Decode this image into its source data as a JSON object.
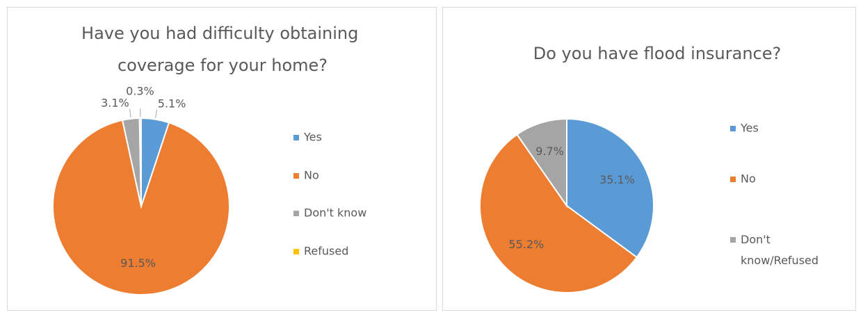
{
  "chart_data": [
    {
      "type": "pie",
      "title": "Have you had difficulty obtaining coverage for your home?",
      "categories": [
        "Yes",
        "No",
        "Don't know",
        "Refused"
      ],
      "values": [
        5.1,
        91.5,
        3.1,
        0.3
      ],
      "value_labels": [
        "5.1%",
        "91.5%",
        "3.1%",
        "0.3%"
      ],
      "colors": [
        "#5b9bd5",
        "#ed7d31",
        "#a5a5a5",
        "#ffc000"
      ],
      "legend": "right"
    },
    {
      "type": "pie",
      "title": "Do you have flood insurance?",
      "categories": [
        "Yes",
        "No",
        "Don't know/Refused"
      ],
      "values": [
        35.1,
        55.2,
        9.7
      ],
      "value_labels": [
        "35.1%",
        "55.2%",
        "9.7%"
      ],
      "colors": [
        "#5b9bd5",
        "#ed7d31",
        "#a5a5a5"
      ],
      "legend": "right"
    }
  ]
}
